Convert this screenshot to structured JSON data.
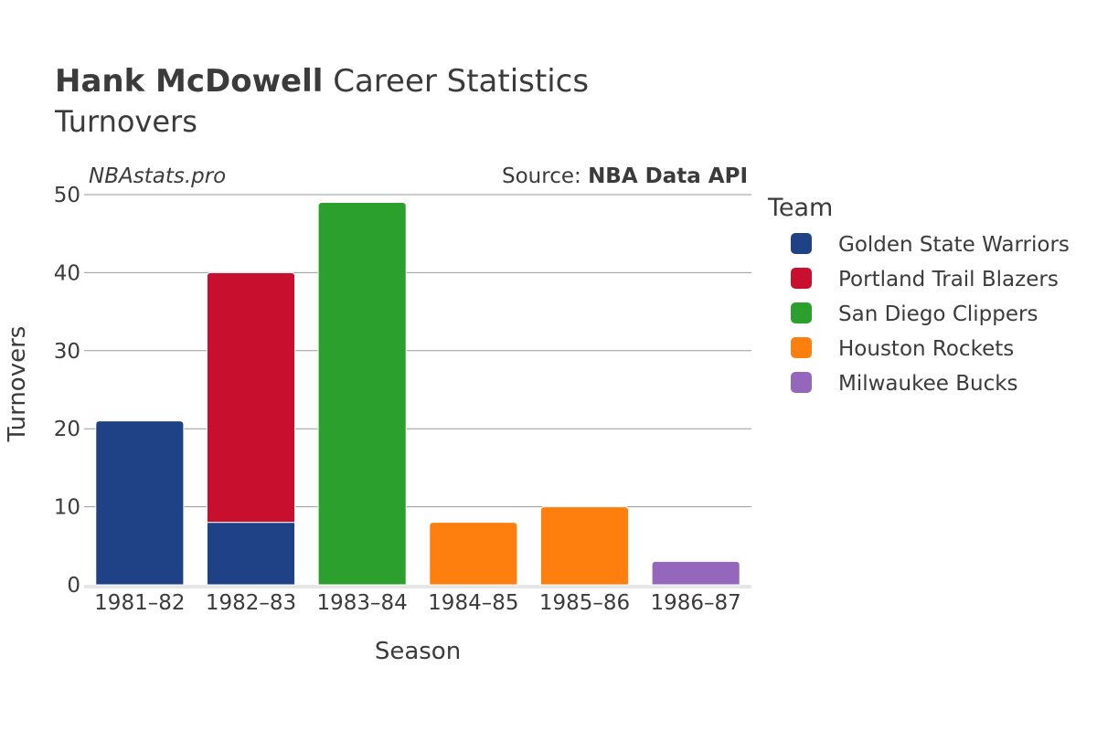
{
  "header": {
    "title_name": "Hank McDowell",
    "title_rest": "Career Statistics",
    "subtitle": "Turnovers"
  },
  "watermark": "NBAstats.pro",
  "source": {
    "prefix": "Source: ",
    "name": "NBA Data API"
  },
  "chart_data": {
    "type": "bar",
    "stacked": true,
    "xlabel": "Season",
    "ylabel": "Turnovers",
    "ylim": [
      0,
      50
    ],
    "yticks": [
      0,
      10,
      20,
      30,
      40,
      50
    ],
    "grid": true,
    "legend_title": "Team",
    "legend_position": "right",
    "categories": [
      "1981–82",
      "1982–83",
      "1983–84",
      "1984–85",
      "1985–86",
      "1986–87"
    ],
    "series": [
      {
        "name": "Golden State Warriors",
        "color": "#1f4287",
        "values": [
          21,
          8,
          0,
          0,
          0,
          0
        ]
      },
      {
        "name": "Portland Trail Blazers",
        "color": "#c8102e",
        "values": [
          0,
          32,
          0,
          0,
          0,
          0
        ]
      },
      {
        "name": "San Diego Clippers",
        "color": "#2ca02c",
        "values": [
          0,
          0,
          49,
          0,
          0,
          0
        ]
      },
      {
        "name": "Houston Rockets",
        "color": "#ff7f0e",
        "values": [
          0,
          0,
          0,
          8,
          10,
          0
        ]
      },
      {
        "name": "Milwaukee Bucks",
        "color": "#9467bd",
        "values": [
          0,
          0,
          0,
          0,
          0,
          3
        ]
      }
    ]
  }
}
